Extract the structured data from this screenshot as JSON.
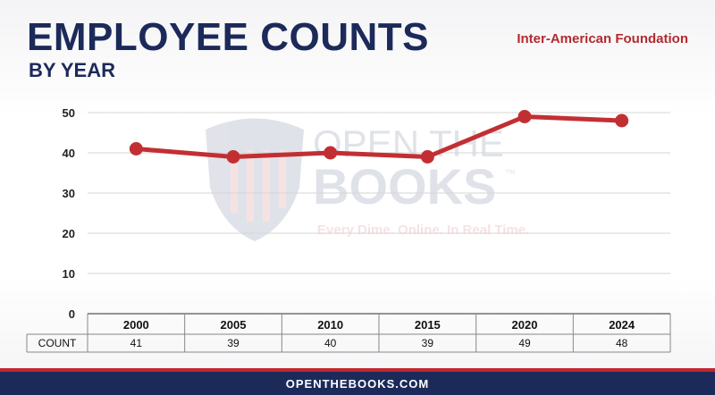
{
  "header": {
    "title": "Employee Counts",
    "subtitle": "BY YEAR",
    "agency": "Inter-American Foundation"
  },
  "watermark": {
    "line1": "OPEN THE",
    "line2": "BOOKS",
    "tm": "™",
    "tagline": "Every Dime. Online. In Real Time."
  },
  "footer": {
    "site": "OPENTHEBOOKS.COM"
  },
  "colors": {
    "navy": "#1c2a5a",
    "red": "#c0262d",
    "line": "#c22f33"
  },
  "chart_data": {
    "type": "line",
    "title": "",
    "xlabel": "",
    "ylabel": "",
    "categories": [
      "2000",
      "2005",
      "2010",
      "2015",
      "2020",
      "2024"
    ],
    "series": [
      {
        "values": [
          41,
          39,
          40,
          39,
          49,
          48
        ]
      }
    ],
    "ylim": [
      0,
      50
    ],
    "yticks": [
      0,
      10,
      20,
      30,
      40,
      50
    ],
    "grid": true,
    "table_row_label": "COUNT",
    "table_values": [
      "41",
      "39",
      "40",
      "39",
      "49",
      "48"
    ]
  }
}
